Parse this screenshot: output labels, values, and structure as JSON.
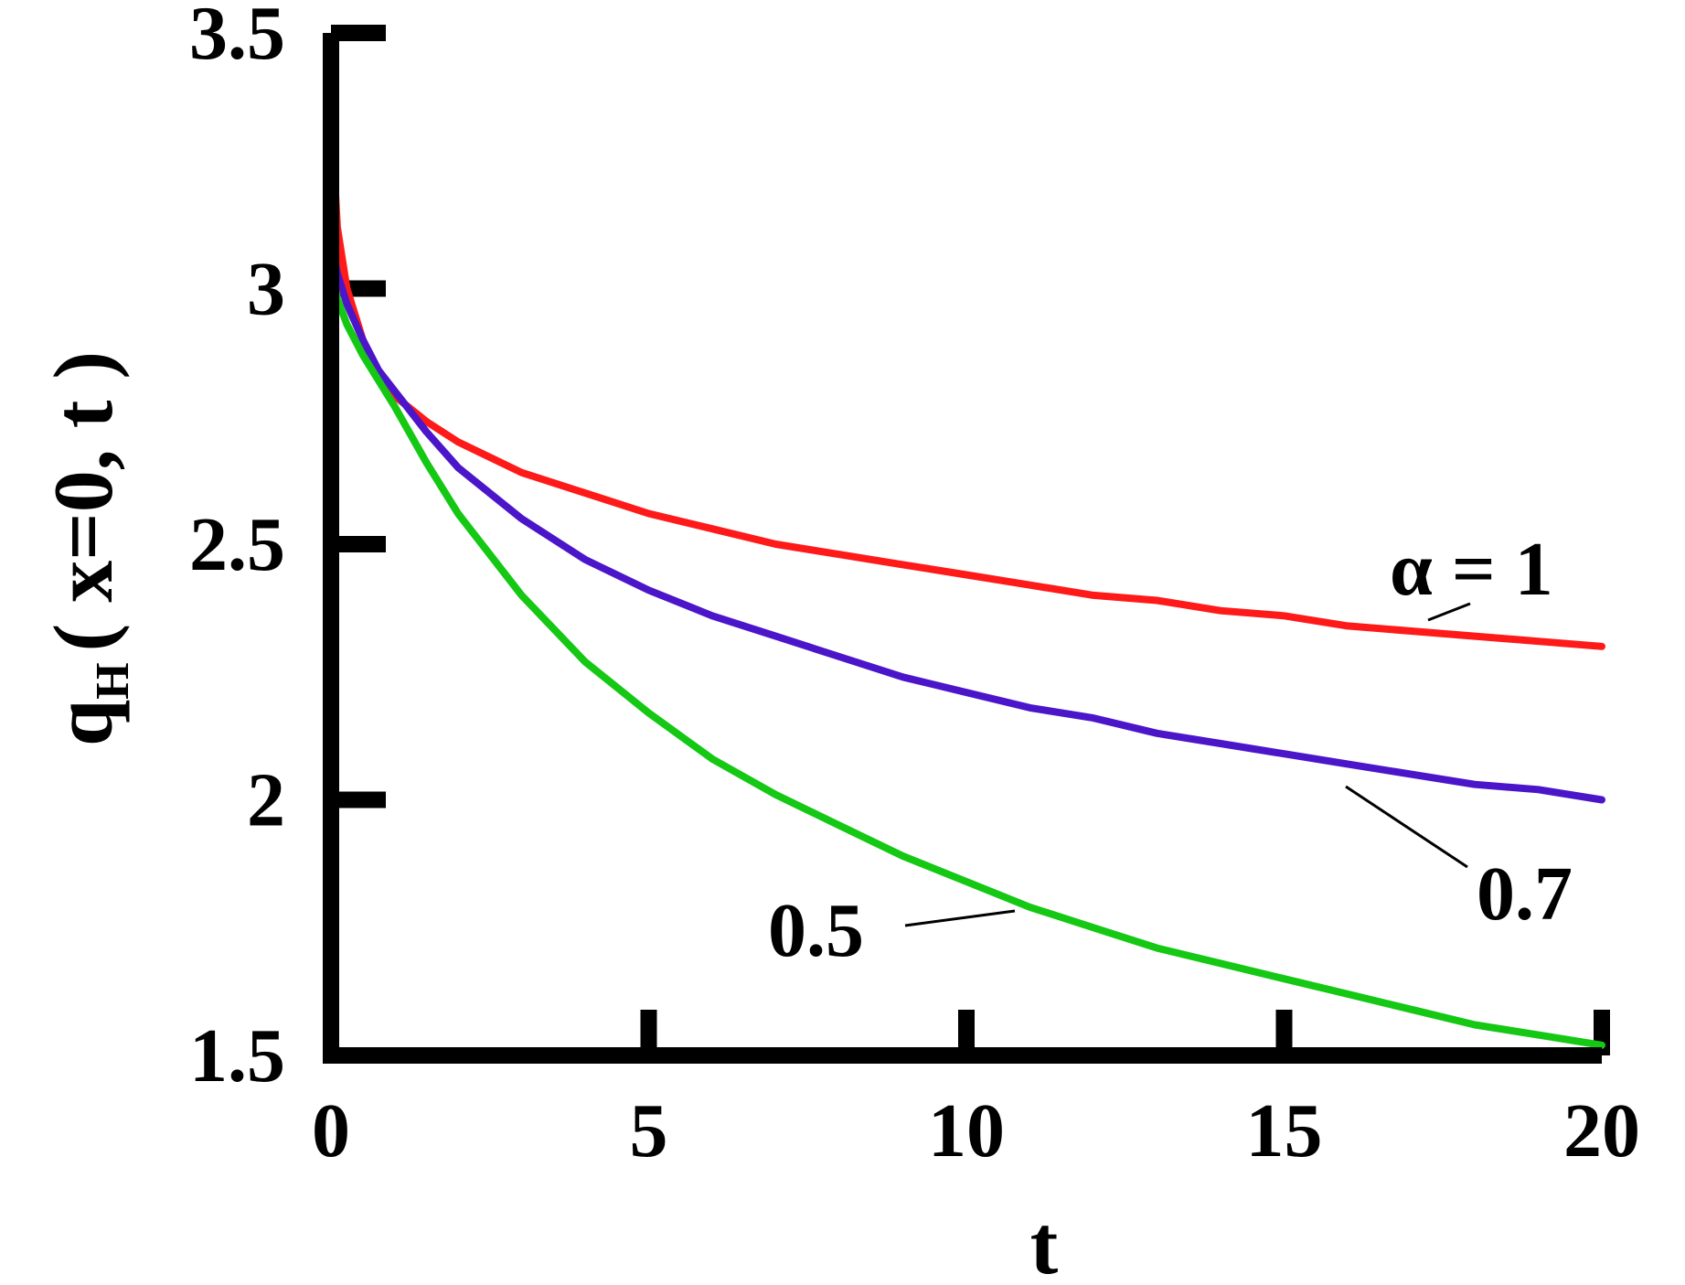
{
  "chart_data": {
    "type": "line",
    "xlabel": "t",
    "ylabel": {
      "main": "q",
      "subscript": "H",
      "args": "( x=0, t )"
    },
    "xlim": [
      0,
      20
    ],
    "ylim": [
      1.5,
      3.5
    ],
    "x_ticks": [
      "0",
      "5",
      "10",
      "15",
      "20"
    ],
    "y_ticks": [
      "1.5",
      "2",
      "2.5",
      "3",
      "3.5"
    ],
    "grid": false,
    "legend": "inline labels",
    "series": [
      {
        "name": "α = 1",
        "color": "#ff1a1a",
        "x": [
          0,
          0.1,
          0.25,
          0.5,
          0.75,
          1,
          1.5,
          2,
          3,
          4,
          5,
          6,
          7,
          8,
          9,
          10,
          11,
          12,
          13,
          14,
          15,
          16,
          17,
          18,
          19,
          20
        ],
        "y": [
          3.35,
          3.12,
          3.0,
          2.9,
          2.83,
          2.79,
          2.74,
          2.7,
          2.64,
          2.6,
          2.56,
          2.53,
          2.5,
          2.48,
          2.46,
          2.44,
          2.42,
          2.4,
          2.39,
          2.37,
          2.36,
          2.34,
          2.33,
          2.32,
          2.31,
          2.3
        ]
      },
      {
        "name": "0.7",
        "color": "#4b16c9",
        "x": [
          0,
          0.1,
          0.25,
          0.5,
          0.75,
          1,
          1.5,
          2,
          3,
          4,
          5,
          6,
          7,
          8,
          9,
          10,
          11,
          12,
          13,
          14,
          15,
          16,
          17,
          18,
          19,
          20
        ],
        "y": [
          3.1,
          3.03,
          2.97,
          2.9,
          2.84,
          2.8,
          2.72,
          2.65,
          2.55,
          2.47,
          2.41,
          2.36,
          2.32,
          2.28,
          2.24,
          2.21,
          2.18,
          2.16,
          2.13,
          2.11,
          2.09,
          2.07,
          2.05,
          2.03,
          2.02,
          2.0
        ]
      },
      {
        "name": "0.5",
        "color": "#14c814",
        "x": [
          0,
          0.1,
          0.25,
          0.5,
          0.75,
          1,
          1.5,
          2,
          3,
          4,
          5,
          6,
          7,
          8,
          9,
          10,
          11,
          12,
          13,
          14,
          15,
          16,
          17,
          18,
          19,
          20
        ],
        "y": [
          3.05,
          2.98,
          2.93,
          2.87,
          2.82,
          2.77,
          2.66,
          2.56,
          2.4,
          2.27,
          2.17,
          2.08,
          2.01,
          1.95,
          1.89,
          1.84,
          1.79,
          1.75,
          1.71,
          1.68,
          1.65,
          1.62,
          1.59,
          1.56,
          1.54,
          1.52
        ]
      }
    ]
  }
}
